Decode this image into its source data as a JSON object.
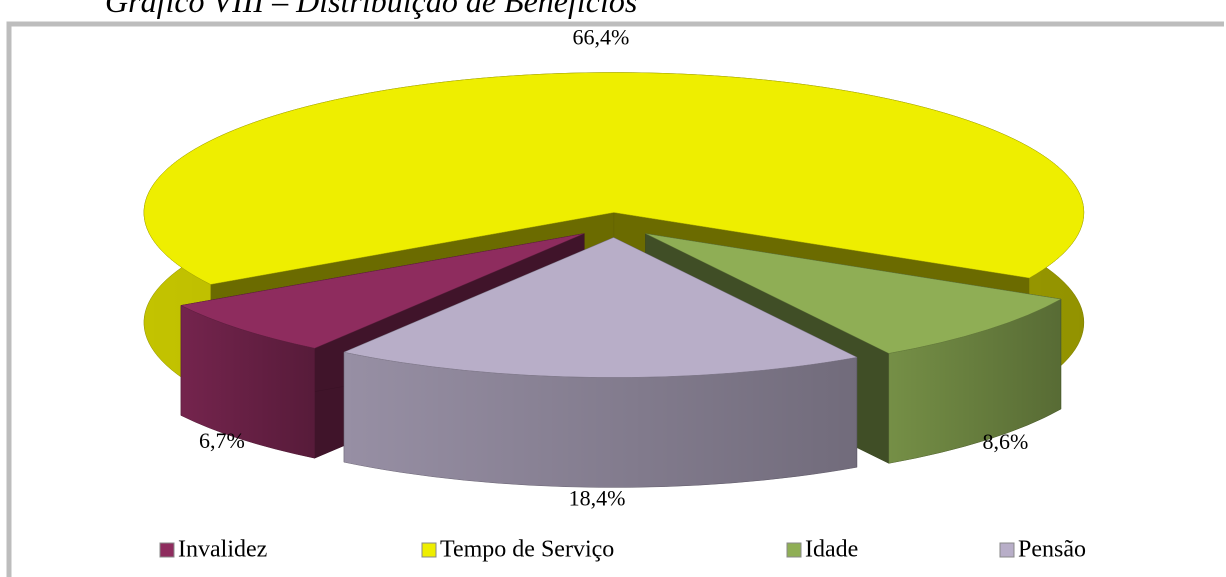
{
  "chart_data": {
    "type": "pie3d",
    "title": "Gráfico VIII – Distribuição de Benefícios",
    "categories": [
      "Invalidez",
      "Tempo de Serviço",
      "Idade",
      "Pensão"
    ],
    "values": [
      6.7,
      66.4,
      8.6,
      18.4
    ],
    "value_labels": [
      "6,7%",
      "66,4%",
      "8,6%",
      "18,4%"
    ],
    "colors": [
      "#8e2c5e",
      "#eeee00",
      "#8fae55",
      "#b8aec8"
    ],
    "legend": "bottom"
  }
}
